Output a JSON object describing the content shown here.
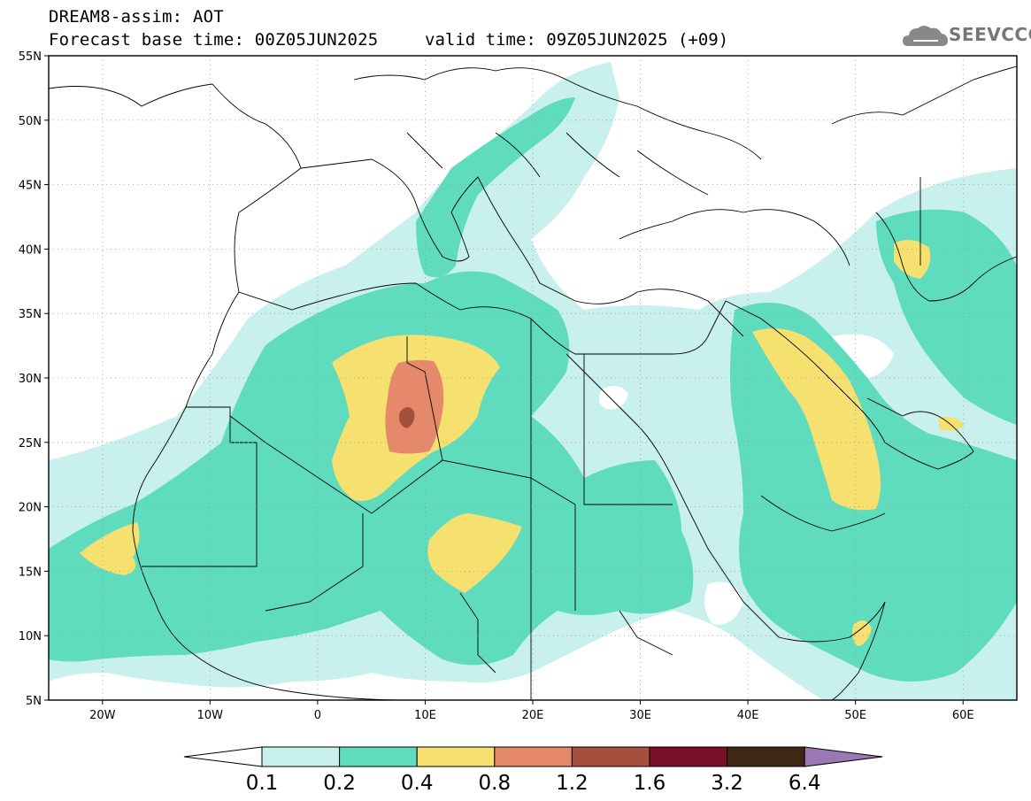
{
  "title": {
    "line1": "DREAM8-assim: AOT",
    "line2": "Forecast base time: 00Z05JUN2025",
    "valid": "valid time: 09Z05JUN2025 (+09)"
  },
  "logo": {
    "text": "SEEVCCC",
    "icon": "cloud-icon"
  },
  "map": {
    "lat_labels": [
      "55N",
      "50N",
      "45N",
      "40N",
      "35N",
      "30N",
      "25N",
      "20N",
      "15N",
      "10N",
      "5N"
    ],
    "lon_labels": [
      "20W",
      "10W",
      "0",
      "10E",
      "20E",
      "30E",
      "40E",
      "50E",
      "60E"
    ],
    "lat_range": [
      5,
      55
    ],
    "lon_range": [
      -25,
      65
    ],
    "grid": true
  },
  "colorbar": {
    "labels": [
      "0.1",
      "0.2",
      "0.4",
      "0.8",
      "1.2",
      "1.6",
      "3.2",
      "6.4"
    ],
    "colors": [
      "#ffffff",
      "#c8f0ec",
      "#5fdcbe",
      "#f5e070",
      "#e6896a",
      "#a5503c",
      "#7a0f2a",
      "#3e2814",
      "#9a78b6"
    ]
  },
  "palette": {
    "c01": "#c8f0ec",
    "c02": "#5fdcbe",
    "c04": "#f5e070",
    "c08": "#e6896a",
    "c12": "#a5503c"
  }
}
